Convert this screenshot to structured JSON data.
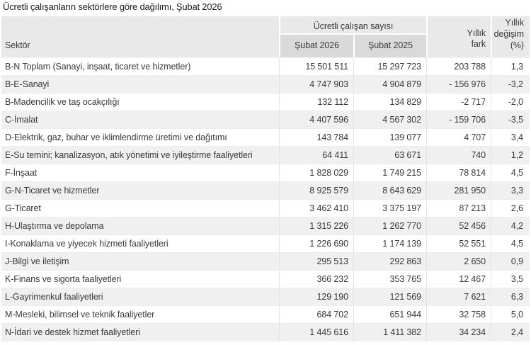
{
  "title": "Ücretli çalışanların sektörlere göre dağılımı, Şubat 2026",
  "table": {
    "header": {
      "sector": "Sektör",
      "count_group": "Ücretli çalışan sayısı",
      "col_feb2026": "Şubat 2026",
      "col_feb2025": "Şubat 2025",
      "col_diff_lines": [
        "Yıllık",
        "fark"
      ],
      "col_change_lines": [
        "Yıllık",
        "değişim",
        "(%)"
      ]
    },
    "rows": [
      {
        "sector": "B-N Toplam (Sanayi, inşaat, ticaret ve hizmetler)",
        "feb2026": "15 501 511",
        "feb2025": "15 297 723",
        "diff": "203 788",
        "change": "1,3"
      },
      {
        "sector": "B-E-Sanayi",
        "feb2026": "4 747 903",
        "feb2025": "4 904 879",
        "diff": "- 156 976",
        "change": "-3,2"
      },
      {
        "sector": "B-Madencilik ve taş ocakçılığı",
        "feb2026": "132 112",
        "feb2025": "134 829",
        "diff": "-2 717",
        "change": "-2,0"
      },
      {
        "sector": "C-İmalat",
        "feb2026": "4 407 596",
        "feb2025": "4 567 302",
        "diff": "- 159 706",
        "change": "-3,5"
      },
      {
        "sector": "D-Elektrik, gaz, buhar ve iklimlendirme üretimi ve dağıtımı",
        "feb2026": "143 784",
        "feb2025": "139 077",
        "diff": "4 707",
        "change": "3,4"
      },
      {
        "sector": "E-Su temini; kanalizasyon, atık yönetimi ve iyileştirme faaliyetleri",
        "feb2026": "64 411",
        "feb2025": "63 671",
        "diff": "740",
        "change": "1,2"
      },
      {
        "sector": "F-İnşaat",
        "feb2026": "1 828 029",
        "feb2025": "1 749 215",
        "diff": "78 814",
        "change": "4,5"
      },
      {
        "sector": "G-N-Ticaret ve hizmetler",
        "feb2026": "8 925 579",
        "feb2025": "8 643 629",
        "diff": "281 950",
        "change": "3,3"
      },
      {
        "sector": "G-Ticaret",
        "feb2026": "3 462 410",
        "feb2025": "3 375 197",
        "diff": "87 213",
        "change": "2,6"
      },
      {
        "sector": "H-Ulaştırma ve depolama",
        "feb2026": "1 315 226",
        "feb2025": "1 262 770",
        "diff": "52 456",
        "change": "4,2"
      },
      {
        "sector": "I-Konaklama ve yiyecek hizmeti faaliyetleri",
        "feb2026": "1 226 690",
        "feb2025": "1 174 139",
        "diff": "52 551",
        "change": "4,5"
      },
      {
        "sector": "J-Bilgi ve iletişim",
        "feb2026": "295 513",
        "feb2025": "292 863",
        "diff": "2 650",
        "change": "0,9"
      },
      {
        "sector": "K-Finans ve sigorta faaliyetleri",
        "feb2026": "366 232",
        "feb2025": "353 765",
        "diff": "12 467",
        "change": "3,5"
      },
      {
        "sector": "L-Gayrimenkul faaliyetleri",
        "feb2026": "129 190",
        "feb2025": "121 569",
        "diff": "7 621",
        "change": "6,3"
      },
      {
        "sector": "M-Mesleki, bilimsel ve teknik faaliyetler",
        "feb2026": "684 702",
        "feb2025": "651 944",
        "diff": "32 758",
        "change": "5,0"
      },
      {
        "sector": "N-İdari ve destek hizmet faaliyetleri",
        "feb2026": "1 445 616",
        "feb2025": "1 411 382",
        "diff": "34 234",
        "change": "2,4"
      }
    ]
  },
  "colors": {
    "header_bg": "#e9e9e9",
    "subheader_bg": "#dadada",
    "row_alt_bg": "#f0f0f0",
    "text": "#3a3a3a"
  }
}
